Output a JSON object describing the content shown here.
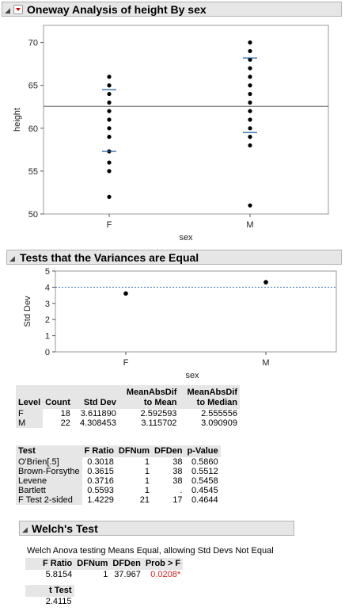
{
  "oneway": {
    "title": "Oneway Analysis of height By sex",
    "chart_data": {
      "type": "scatter",
      "xlabel": "sex",
      "ylabel": "height",
      "categories": [
        "F",
        "M"
      ],
      "ylim": [
        50,
        72
      ],
      "yticks": [
        50,
        55,
        60,
        65,
        70
      ],
      "series": [
        {
          "category": "F",
          "values": [
            52,
            55,
            56,
            57.3,
            59,
            60,
            61,
            62,
            63,
            64,
            65,
            66
          ]
        },
        {
          "category": "M",
          "values": [
            51,
            58,
            59,
            60,
            61,
            62,
            63,
            64,
            65,
            66,
            67,
            68,
            69,
            70
          ]
        }
      ],
      "grand_mean": 62.55,
      "ticks_F": [
        57.3,
        64.5
      ],
      "ticks_M": [
        59.5,
        68.2
      ]
    }
  },
  "variances": {
    "title": "Tests that the Variances are Equal",
    "chart_data": {
      "type": "scatter",
      "xlabel": "sex",
      "ylabel": "Std Dev",
      "categories": [
        "F",
        "M"
      ],
      "values": [
        3.61189,
        4.308453
      ],
      "ylim": [
        0,
        5
      ],
      "yticks": [
        0,
        1,
        2,
        3,
        4,
        5
      ],
      "reference_line": 4.0
    },
    "level_table": {
      "headers": [
        "Level",
        "Count",
        "Std Dev",
        "MeanAbsDif to Mean",
        "MeanAbsDif to Median"
      ],
      "header_top": [
        "",
        "",
        "",
        "MeanAbsDif",
        "MeanAbsDif"
      ],
      "header_bottom": [
        "Level",
        "Count",
        "Std Dev",
        "to Mean",
        "to Median"
      ],
      "rows": [
        [
          "F",
          "18",
          "3.611890",
          "2.592593",
          "2.555556"
        ],
        [
          "M",
          "22",
          "4.308453",
          "3.115702",
          "3.090909"
        ]
      ]
    },
    "test_table": {
      "headers": [
        "Test",
        "F Ratio",
        "DFNum",
        "DFDen",
        "p-Value"
      ],
      "rows": [
        [
          "O'Brien[.5]",
          "0.3018",
          "1",
          "38",
          "0.5860"
        ],
        [
          "Brown-Forsythe",
          "0.3615",
          "1",
          "38",
          "0.5512"
        ],
        [
          "Levene",
          "0.3716",
          "1",
          "38",
          "0.5458"
        ],
        [
          "Bartlett",
          "0.5593",
          "1",
          ".",
          "0.4545"
        ],
        [
          "F Test 2-sided",
          "1.4229",
          "21",
          "17",
          "0.4644"
        ]
      ]
    }
  },
  "welch": {
    "title": "Welch's Test",
    "description": "Welch Anova testing Means Equal, allowing Std Devs Not Equal",
    "headers": [
      "F Ratio",
      "DFNum",
      "DFDen",
      "Prob > F"
    ],
    "values": [
      "5.8154",
      "1",
      "37.967",
      "0.0208*"
    ],
    "t_header": "t Test",
    "t_value": "2.4115",
    "significant_color": "#e02020"
  }
}
